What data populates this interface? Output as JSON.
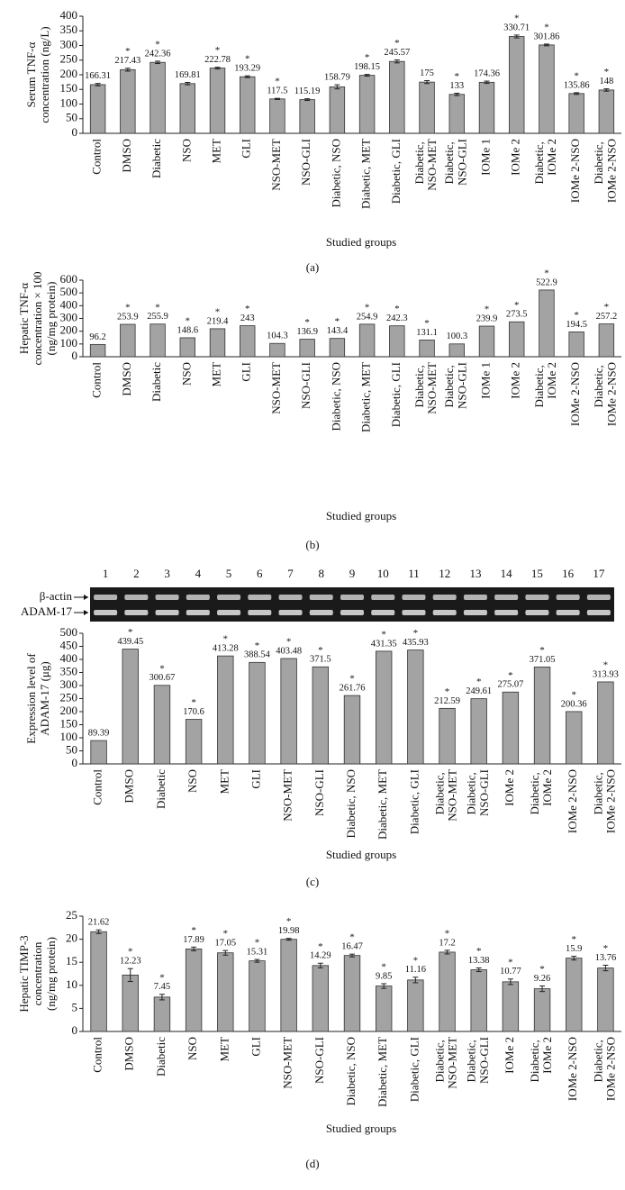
{
  "chart_data": [
    {
      "type": "bar",
      "panel": "(a)",
      "ylabel": [
        "Serum TNF-α",
        "concentration (ng/L)"
      ],
      "xlabel": "Studied groups",
      "categories": [
        "Control",
        "DMSO",
        "Diabetic",
        "NSO",
        "MET",
        "GLI",
        "NSO-MET",
        "NSO-GLI",
        "Diabetic, NSO",
        "Diabetic, MET",
        "Diabetic, GLI",
        "Diabetic, NSO-MET",
        "Diabetic, NSO-GLI",
        "IOMe 1",
        "IOMe 2",
        "Diabetic, IOMe 2",
        "IOMe 2-NSO",
        "Diabetic, IOMe 2-NSO"
      ],
      "values": [
        166.31,
        217.43,
        242.36,
        169.81,
        222.78,
        193.29,
        117.5,
        115.19,
        158.79,
        198.15,
        245.57,
        175,
        133,
        174.36,
        330.71,
        301.86,
        135.86,
        148
      ],
      "errors": [
        4,
        5,
        4,
        4,
        3,
        3,
        2,
        3,
        7,
        3,
        5,
        5,
        4,
        4,
        5,
        3,
        3,
        4
      ],
      "markers": [
        null,
        "*",
        "*",
        null,
        "*",
        "*",
        "*",
        null,
        null,
        "*",
        "*",
        null,
        "*",
        null,
        "*",
        "*",
        "*",
        "*"
      ],
      "color": "#a3a3a3",
      "ylim": [
        0,
        400
      ],
      "yticks": [
        0,
        50,
        100,
        150,
        200,
        250,
        300,
        350,
        400
      ]
    },
    {
      "type": "bar",
      "panel": "(b)",
      "ylabel": [
        "Hepatic TNF-α",
        "concentration × 100",
        "(ng/mg protein)"
      ],
      "xlabel": "Studied groups",
      "categories": [
        "Control",
        "DMSO",
        "Diabetic",
        "NSO",
        "MET",
        "GLI",
        "NSO-MET",
        "NSO-GLI",
        "Diabetic, NSO",
        "Diabetic, MET",
        "Diabetic, GLI",
        "Diabetic, NSO-MET",
        "Diabetic, NSO-GLI",
        "IOMe 1",
        "IOMe 2",
        "Diabetic, IOMe 2",
        "IOMe 2-NSO",
        "Diabetic, IOMe 2-NSO"
      ],
      "values": [
        96.2,
        253.9,
        255.9,
        148.6,
        219.4,
        243,
        104.3,
        136.9,
        143.4,
        254.9,
        242.3,
        131.1,
        100.3,
        239.9,
        273.5,
        522.9,
        194.5,
        257.2
      ],
      "markers": [
        null,
        "*",
        "*",
        "*",
        "*",
        "*",
        null,
        "*",
        "*",
        "*",
        "*",
        "*",
        null,
        "*",
        "*",
        "*",
        "*",
        "*"
      ],
      "color": "#a3a3a3",
      "ylim": [
        0,
        600
      ],
      "yticks": [
        0,
        100,
        200,
        300,
        400,
        500,
        600
      ]
    },
    {
      "type": "bar",
      "panel": "(c)",
      "ylabel": [
        "Expression level of",
        "ADAM-17 (μg)"
      ],
      "xlabel": "Studied groups",
      "gel": {
        "lanes": [
          "1",
          "2",
          "3",
          "4",
          "5",
          "6",
          "7",
          "8",
          "9",
          "10",
          "11",
          "12",
          "13",
          "14",
          "15",
          "16",
          "17"
        ],
        "bands": [
          "β-actin",
          "ADAM-17"
        ]
      },
      "categories": [
        "Control",
        "DMSO",
        "Diabetic",
        "NSO",
        "MET",
        "GLI",
        "NSO-MET",
        "NSO-GLI",
        "Diabetic, NSO",
        "Diabetic, MET",
        "Diabetic, GLI",
        "Diabetic, NSO-MET",
        "Diabetic, NSO-GLI",
        "IOMe 2",
        "Diabetic, IOMe 2",
        "IOMe 2-NSO",
        "Diabetic, IOMe 2-NSO"
      ],
      "values": [
        89.39,
        439.45,
        300.67,
        170.6,
        413.28,
        388.54,
        403.48,
        371.5,
        261.76,
        431.35,
        435.93,
        212.59,
        249.61,
        275.07,
        371.05,
        200.36,
        313.93
      ],
      "markers": [
        null,
        "*",
        "*",
        "*",
        "*",
        "*",
        "*",
        "*",
        "*",
        "*",
        "*",
        "*",
        "*",
        "*",
        "*",
        "*",
        "*"
      ],
      "color": "#a3a3a3",
      "ylim": [
        0,
        500
      ],
      "yticks": [
        0,
        50,
        100,
        150,
        200,
        250,
        300,
        350,
        400,
        450,
        500
      ]
    },
    {
      "type": "bar",
      "panel": "(d)",
      "ylabel": [
        "Hepatic TIMP-3",
        "concentration",
        "(ng/mg protein)"
      ],
      "xlabel": "Studied groups",
      "categories": [
        "Control",
        "DMSO",
        "Diabetic",
        "NSO",
        "MET",
        "GLI",
        "NSO-MET",
        "NSO-GLI",
        "Diabetic, NSO",
        "Diabetic, MET",
        "Diabetic, GLI",
        "Diabetic, NSO-MET",
        "Diabetic, NSO-GLI",
        "IOMe 2",
        "Diabetic, IOMe 2",
        "IOMe 2-NSO",
        "Diabetic, IOMe 2-NSO"
      ],
      "values": [
        21.62,
        12.23,
        7.45,
        17.89,
        17.05,
        15.31,
        19.98,
        14.29,
        16.47,
        9.85,
        11.16,
        17.2,
        13.38,
        10.77,
        9.26,
        15.9,
        13.76
      ],
      "errors": [
        0.4,
        1.4,
        0.6,
        0.4,
        0.5,
        0.3,
        0.2,
        0.5,
        0.3,
        0.5,
        0.6,
        0.4,
        0.4,
        0.6,
        0.6,
        0.4,
        0.6
      ],
      "markers": [
        null,
        "*",
        "*",
        "*",
        "*",
        "*",
        "*",
        "*",
        "*",
        "*",
        "*",
        "*",
        "*",
        "*",
        "*",
        "*",
        "*"
      ],
      "color": "#a3a3a3",
      "ylim": [
        0,
        25
      ],
      "yticks": [
        0,
        5,
        10,
        15,
        20,
        25
      ]
    }
  ]
}
